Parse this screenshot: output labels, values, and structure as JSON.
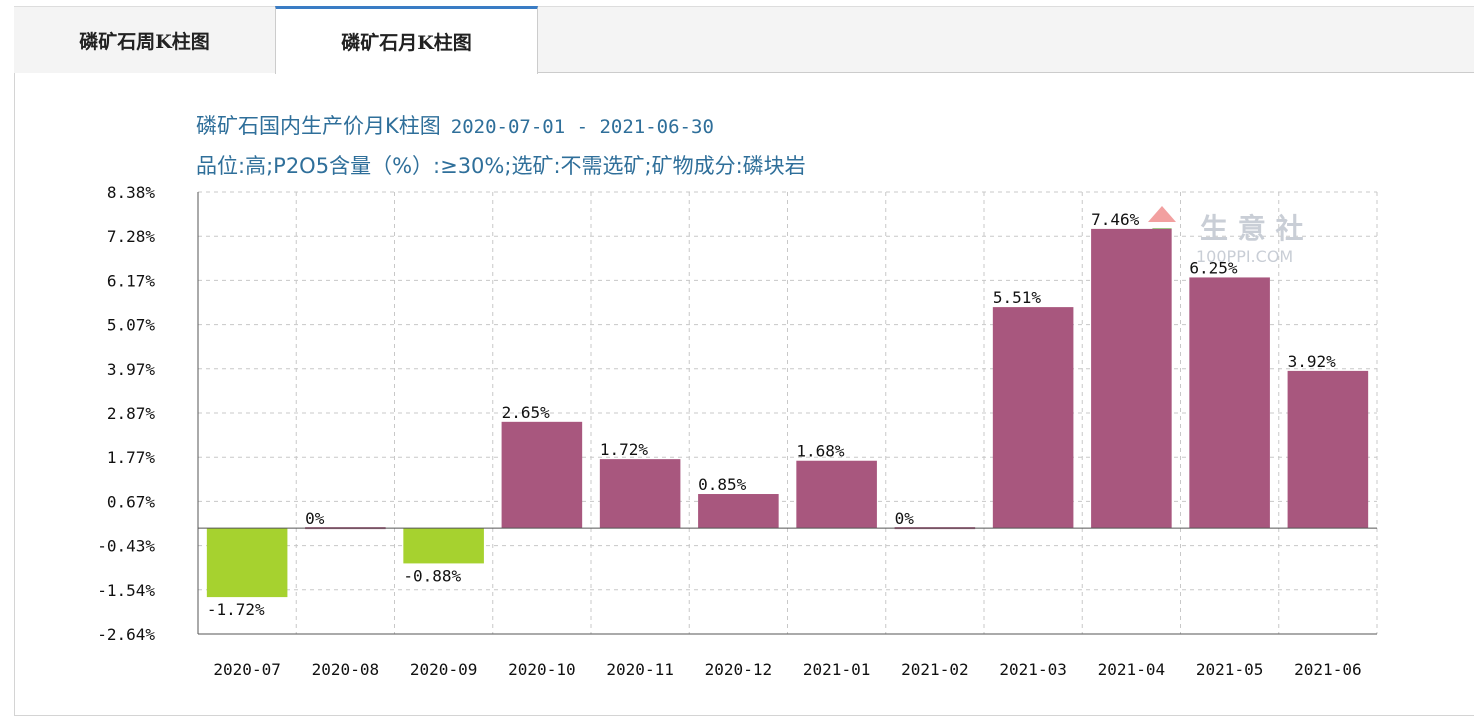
{
  "tabs": [
    {
      "label": "磷矿石周K柱图"
    },
    {
      "label": "磷矿石月K柱图"
    }
  ],
  "title": {
    "main": "磷矿石国内生产价月K柱图",
    "range": "2020-07-01 - 2021-06-30",
    "subtitle": "品位:高;P2O5含量（%）:≥30%;选矿:不需选矿;矿物成分:磷块岩"
  },
  "watermark": {
    "name": "生 意 社",
    "site": "100PPI.COM"
  },
  "colors": {
    "positive": "#a8577e",
    "negative": "#a6d22f",
    "zero": "#a8577e",
    "title": "#2f6f9a",
    "grid": "#c8c8c8",
    "axis": "#555555"
  },
  "chart_data": {
    "type": "bar",
    "categories": [
      "2020-07",
      "2020-08",
      "2020-09",
      "2020-10",
      "2020-11",
      "2020-12",
      "2021-01",
      "2021-02",
      "2021-03",
      "2021-04",
      "2021-05",
      "2021-06"
    ],
    "values": [
      -1.72,
      0,
      -0.88,
      2.65,
      1.72,
      0.85,
      1.68,
      0,
      5.51,
      7.46,
      6.25,
      3.92
    ],
    "value_labels": [
      "-1.72%",
      "0%",
      "-0.88%",
      "2.65%",
      "1.72%",
      "0.85%",
      "1.68%",
      "0%",
      "5.51%",
      "7.46%",
      "6.25%",
      "3.92%"
    ],
    "yticks": [
      "8.38%",
      "7.28%",
      "6.17%",
      "5.07%",
      "3.97%",
      "2.87%",
      "1.77%",
      "0.67%",
      "-0.43%",
      "-1.54%",
      "-2.64%"
    ],
    "ylim": [
      -2.64,
      8.38
    ],
    "grid": true
  }
}
